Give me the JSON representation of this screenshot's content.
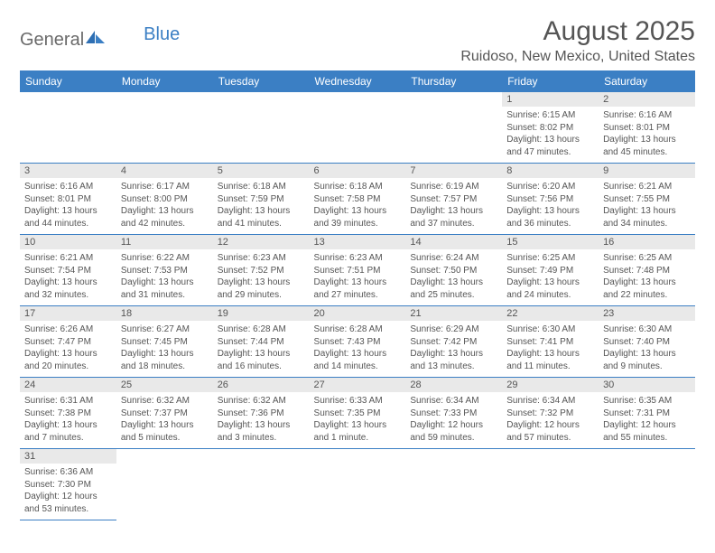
{
  "brand": {
    "general": "General",
    "blue": "Blue"
  },
  "header": {
    "month_title": "August 2025",
    "location": "Ruidoso, New Mexico, United States"
  },
  "colors": {
    "header_bg": "#3b7fc4",
    "header_text": "#ffffff",
    "daynum_bg": "#e9e9e9",
    "border": "#3b7fc4",
    "text": "#555555"
  },
  "weekdays": [
    "Sunday",
    "Monday",
    "Tuesday",
    "Wednesday",
    "Thursday",
    "Friday",
    "Saturday"
  ],
  "cells": {
    "r0c5": {
      "n": "1",
      "sr": "Sunrise: 6:15 AM",
      "ss": "Sunset: 8:02 PM",
      "d1": "Daylight: 13 hours",
      "d2": "and 47 minutes."
    },
    "r0c6": {
      "n": "2",
      "sr": "Sunrise: 6:16 AM",
      "ss": "Sunset: 8:01 PM",
      "d1": "Daylight: 13 hours",
      "d2": "and 45 minutes."
    },
    "r1c0": {
      "n": "3",
      "sr": "Sunrise: 6:16 AM",
      "ss": "Sunset: 8:01 PM",
      "d1": "Daylight: 13 hours",
      "d2": "and 44 minutes."
    },
    "r1c1": {
      "n": "4",
      "sr": "Sunrise: 6:17 AM",
      "ss": "Sunset: 8:00 PM",
      "d1": "Daylight: 13 hours",
      "d2": "and 42 minutes."
    },
    "r1c2": {
      "n": "5",
      "sr": "Sunrise: 6:18 AM",
      "ss": "Sunset: 7:59 PM",
      "d1": "Daylight: 13 hours",
      "d2": "and 41 minutes."
    },
    "r1c3": {
      "n": "6",
      "sr": "Sunrise: 6:18 AM",
      "ss": "Sunset: 7:58 PM",
      "d1": "Daylight: 13 hours",
      "d2": "and 39 minutes."
    },
    "r1c4": {
      "n": "7",
      "sr": "Sunrise: 6:19 AM",
      "ss": "Sunset: 7:57 PM",
      "d1": "Daylight: 13 hours",
      "d2": "and 37 minutes."
    },
    "r1c5": {
      "n": "8",
      "sr": "Sunrise: 6:20 AM",
      "ss": "Sunset: 7:56 PM",
      "d1": "Daylight: 13 hours",
      "d2": "and 36 minutes."
    },
    "r1c6": {
      "n": "9",
      "sr": "Sunrise: 6:21 AM",
      "ss": "Sunset: 7:55 PM",
      "d1": "Daylight: 13 hours",
      "d2": "and 34 minutes."
    },
    "r2c0": {
      "n": "10",
      "sr": "Sunrise: 6:21 AM",
      "ss": "Sunset: 7:54 PM",
      "d1": "Daylight: 13 hours",
      "d2": "and 32 minutes."
    },
    "r2c1": {
      "n": "11",
      "sr": "Sunrise: 6:22 AM",
      "ss": "Sunset: 7:53 PM",
      "d1": "Daylight: 13 hours",
      "d2": "and 31 minutes."
    },
    "r2c2": {
      "n": "12",
      "sr": "Sunrise: 6:23 AM",
      "ss": "Sunset: 7:52 PM",
      "d1": "Daylight: 13 hours",
      "d2": "and 29 minutes."
    },
    "r2c3": {
      "n": "13",
      "sr": "Sunrise: 6:23 AM",
      "ss": "Sunset: 7:51 PM",
      "d1": "Daylight: 13 hours",
      "d2": "and 27 minutes."
    },
    "r2c4": {
      "n": "14",
      "sr": "Sunrise: 6:24 AM",
      "ss": "Sunset: 7:50 PM",
      "d1": "Daylight: 13 hours",
      "d2": "and 25 minutes."
    },
    "r2c5": {
      "n": "15",
      "sr": "Sunrise: 6:25 AM",
      "ss": "Sunset: 7:49 PM",
      "d1": "Daylight: 13 hours",
      "d2": "and 24 minutes."
    },
    "r2c6": {
      "n": "16",
      "sr": "Sunrise: 6:25 AM",
      "ss": "Sunset: 7:48 PM",
      "d1": "Daylight: 13 hours",
      "d2": "and 22 minutes."
    },
    "r3c0": {
      "n": "17",
      "sr": "Sunrise: 6:26 AM",
      "ss": "Sunset: 7:47 PM",
      "d1": "Daylight: 13 hours",
      "d2": "and 20 minutes."
    },
    "r3c1": {
      "n": "18",
      "sr": "Sunrise: 6:27 AM",
      "ss": "Sunset: 7:45 PM",
      "d1": "Daylight: 13 hours",
      "d2": "and 18 minutes."
    },
    "r3c2": {
      "n": "19",
      "sr": "Sunrise: 6:28 AM",
      "ss": "Sunset: 7:44 PM",
      "d1": "Daylight: 13 hours",
      "d2": "and 16 minutes."
    },
    "r3c3": {
      "n": "20",
      "sr": "Sunrise: 6:28 AM",
      "ss": "Sunset: 7:43 PM",
      "d1": "Daylight: 13 hours",
      "d2": "and 14 minutes."
    },
    "r3c4": {
      "n": "21",
      "sr": "Sunrise: 6:29 AM",
      "ss": "Sunset: 7:42 PM",
      "d1": "Daylight: 13 hours",
      "d2": "and 13 minutes."
    },
    "r3c5": {
      "n": "22",
      "sr": "Sunrise: 6:30 AM",
      "ss": "Sunset: 7:41 PM",
      "d1": "Daylight: 13 hours",
      "d2": "and 11 minutes."
    },
    "r3c6": {
      "n": "23",
      "sr": "Sunrise: 6:30 AM",
      "ss": "Sunset: 7:40 PM",
      "d1": "Daylight: 13 hours",
      "d2": "and 9 minutes."
    },
    "r4c0": {
      "n": "24",
      "sr": "Sunrise: 6:31 AM",
      "ss": "Sunset: 7:38 PM",
      "d1": "Daylight: 13 hours",
      "d2": "and 7 minutes."
    },
    "r4c1": {
      "n": "25",
      "sr": "Sunrise: 6:32 AM",
      "ss": "Sunset: 7:37 PM",
      "d1": "Daylight: 13 hours",
      "d2": "and 5 minutes."
    },
    "r4c2": {
      "n": "26",
      "sr": "Sunrise: 6:32 AM",
      "ss": "Sunset: 7:36 PM",
      "d1": "Daylight: 13 hours",
      "d2": "and 3 minutes."
    },
    "r4c3": {
      "n": "27",
      "sr": "Sunrise: 6:33 AM",
      "ss": "Sunset: 7:35 PM",
      "d1": "Daylight: 13 hours",
      "d2": "and 1 minute."
    },
    "r4c4": {
      "n": "28",
      "sr": "Sunrise: 6:34 AM",
      "ss": "Sunset: 7:33 PM",
      "d1": "Daylight: 12 hours",
      "d2": "and 59 minutes."
    },
    "r4c5": {
      "n": "29",
      "sr": "Sunrise: 6:34 AM",
      "ss": "Sunset: 7:32 PM",
      "d1": "Daylight: 12 hours",
      "d2": "and 57 minutes."
    },
    "r4c6": {
      "n": "30",
      "sr": "Sunrise: 6:35 AM",
      "ss": "Sunset: 7:31 PM",
      "d1": "Daylight: 12 hours",
      "d2": "and 55 minutes."
    },
    "r5c0": {
      "n": "31",
      "sr": "Sunrise: 6:36 AM",
      "ss": "Sunset: 7:30 PM",
      "d1": "Daylight: 12 hours",
      "d2": "and 53 minutes."
    }
  }
}
